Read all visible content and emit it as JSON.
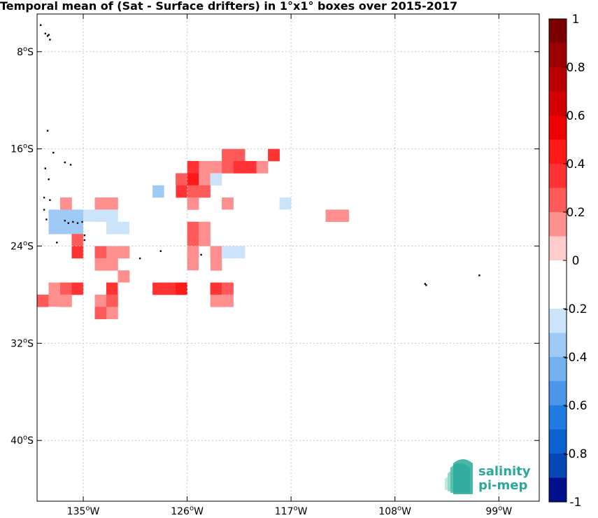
{
  "title": "Temporal mean of (Sat - Surface drifters) in 1°x1° boxes over 2015-2017",
  "map": {
    "lon_ticks": [
      "135°W",
      "126°W",
      "117°W",
      "108°W",
      "99°W"
    ],
    "lat_ticks": [
      "8°S",
      "16°S",
      "24°S",
      "32°S",
      "40°S"
    ],
    "lon_tick_values": [
      -135,
      -126,
      -117,
      -108,
      -99
    ],
    "lat_tick_values": [
      -8,
      -16,
      -24,
      -32,
      -40
    ],
    "lon_range": [
      -139.0,
      -95.5
    ],
    "lat_range": [
      -4.9,
      -45.0
    ],
    "grid": true
  },
  "colorbar": {
    "tick_labels": [
      "1",
      "0.8",
      "0.6",
      "0.4",
      "0.2",
      "0",
      "-0.2",
      "-0.4",
      "-0.6",
      "-0.8",
      "-1"
    ],
    "levels": 20,
    "colors_top_to_bottom": [
      "#7a0000",
      "#9c0000",
      "#b80000",
      "#d40000",
      "#ee0000",
      "#ff1a1a",
      "#ff3333",
      "#ff5a5a",
      "#ff8f8f",
      "#ffcccc",
      "#ffffff",
      "#ffffff",
      "#cce4fa",
      "#9fcaf5",
      "#73b0f0",
      "#4a96ea",
      "#1f7ce3",
      "#0a62d0",
      "#0548b5",
      "#00108a"
    ]
  },
  "logo": {
    "line1": "salinity",
    "line2": "pi-mep",
    "color": "#2aa89a"
  },
  "chart_data": {
    "type": "heatmap",
    "title": "Temporal mean of (Sat - Surface drifters) in 1°x1° boxes over 2015-2017",
    "x_unit": "longitude (°E, negative = W)",
    "y_unit": "latitude (°N, negative = S)",
    "value_range": [
      -1,
      1
    ],
    "cells": [
      {
        "lon": -110.5,
        "lat": -9.5,
        "v": -0.15
      },
      {
        "lon": -118.5,
        "lat": -15.5,
        "v": -0.15
      },
      {
        "lon": -118.5,
        "lat": -16.5,
        "v": 0.35
      },
      {
        "lon": -122.5,
        "lat": -16.5,
        "v": 0.25
      },
      {
        "lon": -121.5,
        "lat": -16.5,
        "v": 0.25
      },
      {
        "lon": -124.5,
        "lat": -17.5,
        "v": 0.15
      },
      {
        "lon": -123.5,
        "lat": -17.5,
        "v": 0.15
      },
      {
        "lon": -122.5,
        "lat": -17.5,
        "v": 0.25
      },
      {
        "lon": -121.5,
        "lat": -17.5,
        "v": 0.35
      },
      {
        "lon": -120.5,
        "lat": -17.5,
        "v": 0.35
      },
      {
        "lon": -119.5,
        "lat": -17.5,
        "v": 0.15
      },
      {
        "lon": -126.5,
        "lat": -17.5,
        "v": -0.15
      },
      {
        "lon": -125.5,
        "lat": -17.5,
        "v": 0.35
      },
      {
        "lon": -126.5,
        "lat": -18.5,
        "v": 0.25
      },
      {
        "lon": -125.5,
        "lat": -18.5,
        "v": 0.45
      },
      {
        "lon": -124.5,
        "lat": -18.5,
        "v": 0.15
      },
      {
        "lon": -123.5,
        "lat": -18.5,
        "v": -0.25
      },
      {
        "lon": -126.5,
        "lat": -19.5,
        "v": 0.35
      },
      {
        "lon": -125.5,
        "lat": -19.5,
        "v": 0.25
      },
      {
        "lon": -124.5,
        "lat": -19.5,
        "v": 0.25
      },
      {
        "lon": -122.5,
        "lat": -19.5,
        "v": -0.15
      },
      {
        "lon": -128.5,
        "lat": -19.5,
        "v": -0.35
      },
      {
        "lon": -127.5,
        "lat": -19.5,
        "v": -0.15
      },
      {
        "lon": -136.5,
        "lat": -20.5,
        "v": 0.15
      },
      {
        "lon": -133.5,
        "lat": -20.5,
        "v": 0.15
      },
      {
        "lon": -132.5,
        "lat": -20.5,
        "v": 0.15
      },
      {
        "lon": -129.5,
        "lat": -20.5,
        "v": -0.15
      },
      {
        "lon": -127.5,
        "lat": -20.5,
        "v": -0.15
      },
      {
        "lon": -125.5,
        "lat": -20.5,
        "v": 0.15
      },
      {
        "lon": -123.5,
        "lat": -20.5,
        "v": -0.15
      },
      {
        "lon": -122.5,
        "lat": -20.5,
        "v": 0.15
      },
      {
        "lon": -120.5,
        "lat": -20.5,
        "v": -0.15
      },
      {
        "lon": -117.5,
        "lat": -20.5,
        "v": -0.25
      },
      {
        "lon": -113.5,
        "lat": -21.5,
        "v": 0.15
      },
      {
        "lon": -112.5,
        "lat": -21.5,
        "v": 0.15
      },
      {
        "lon": -137.5,
        "lat": -21.5,
        "v": -0.35
      },
      {
        "lon": -136.5,
        "lat": -21.5,
        "v": -0.35
      },
      {
        "lon": -135.5,
        "lat": -21.5,
        "v": -0.35
      },
      {
        "lon": -134.5,
        "lat": -21.5,
        "v": -0.25
      },
      {
        "lon": -133.5,
        "lat": -21.5,
        "v": -0.25
      },
      {
        "lon": -132.5,
        "lat": -21.5,
        "v": -0.25
      },
      {
        "lon": -129.5,
        "lat": -21.5,
        "v": -0.15
      },
      {
        "lon": -122.5,
        "lat": -21.5,
        "v": -0.15
      },
      {
        "lon": -120.5,
        "lat": -21.5,
        "v": -0.15
      },
      {
        "lon": -117.5,
        "lat": -21.5,
        "v": -0.15
      },
      {
        "lon": -137.5,
        "lat": -22.5,
        "v": -0.35
      },
      {
        "lon": -136.5,
        "lat": -22.5,
        "v": -0.35
      },
      {
        "lon": -135.5,
        "lat": -22.5,
        "v": -0.35
      },
      {
        "lon": -134.5,
        "lat": -22.5,
        "v": -0.15
      },
      {
        "lon": -132.5,
        "lat": -22.5,
        "v": -0.25
      },
      {
        "lon": -131.5,
        "lat": -22.5,
        "v": -0.25
      },
      {
        "lon": -130.5,
        "lat": -22.5,
        "v": -0.15
      },
      {
        "lon": -127.5,
        "lat": -22.5,
        "v": -0.15
      },
      {
        "lon": -125.5,
        "lat": -22.5,
        "v": 0.25
      },
      {
        "lon": -124.5,
        "lat": -22.5,
        "v": 0.15
      },
      {
        "lon": -117.5,
        "lat": -22.5,
        "v": -0.15
      },
      {
        "lon": -135.5,
        "lat": -23.5,
        "v": 0.25
      },
      {
        "lon": -130.5,
        "lat": -23.5,
        "v": -0.15
      },
      {
        "lon": -125.5,
        "lat": -23.5,
        "v": 0.25
      },
      {
        "lon": -124.5,
        "lat": -23.5,
        "v": 0.15
      },
      {
        "lon": -135.5,
        "lat": -24.5,
        "v": 0.35
      },
      {
        "lon": -133.5,
        "lat": -24.5,
        "v": 0.25
      },
      {
        "lon": -132.5,
        "lat": -24.5,
        "v": 0.15
      },
      {
        "lon": -131.5,
        "lat": -24.5,
        "v": 0.15
      },
      {
        "lon": -127.5,
        "lat": -24.5,
        "v": -0.15
      },
      {
        "lon": -126.5,
        "lat": -24.5,
        "v": -0.15
      },
      {
        "lon": -125.5,
        "lat": -24.5,
        "v": 0.15
      },
      {
        "lon": -123.5,
        "lat": -24.5,
        "v": 0.15
      },
      {
        "lon": -122.5,
        "lat": -24.5,
        "v": -0.25
      },
      {
        "lon": -121.5,
        "lat": -24.5,
        "v": -0.25
      },
      {
        "lon": -133.5,
        "lat": -25.5,
        "v": 0.15
      },
      {
        "lon": -132.5,
        "lat": -25.5,
        "v": 0.15
      },
      {
        "lon": -130.5,
        "lat": -25.5,
        "v": -0.15
      },
      {
        "lon": -125.5,
        "lat": -25.5,
        "v": 0.15
      },
      {
        "lon": -123.5,
        "lat": -25.5,
        "v": 0.15
      },
      {
        "lon": -124.5,
        "lat": -25.5,
        "v": -0.15
      },
      {
        "lon": -131.5,
        "lat": -26.5,
        "v": 0.15
      },
      {
        "lon": -126.5,
        "lat": -26.5,
        "v": -0.15
      },
      {
        "lon": -125.5,
        "lat": -26.5,
        "v": -0.15
      },
      {
        "lon": -137.5,
        "lat": -27.5,
        "v": 0.15
      },
      {
        "lon": -136.5,
        "lat": -27.5,
        "v": 0.25
      },
      {
        "lon": -135.5,
        "lat": -27.5,
        "v": 0.35
      },
      {
        "lon": -132.5,
        "lat": -27.5,
        "v": 0.35
      },
      {
        "lon": -131.5,
        "lat": -27.5,
        "v": -0.15
      },
      {
        "lon": -128.5,
        "lat": -27.5,
        "v": 0.35
      },
      {
        "lon": -127.5,
        "lat": -27.5,
        "v": 0.35
      },
      {
        "lon": -126.5,
        "lat": -27.5,
        "v": 0.45
      },
      {
        "lon": -124.5,
        "lat": -27.5,
        "v": -0.15
      },
      {
        "lon": -123.5,
        "lat": -27.5,
        "v": 0.35
      },
      {
        "lon": -122.5,
        "lat": -27.5,
        "v": 0.25
      },
      {
        "lon": -138.5,
        "lat": -28.5,
        "v": 0.25
      },
      {
        "lon": -137.5,
        "lat": -28.5,
        "v": 0.15
      },
      {
        "lon": -136.5,
        "lat": -28.5,
        "v": 0.15
      },
      {
        "lon": -133.5,
        "lat": -28.5,
        "v": 0.15
      },
      {
        "lon": -132.5,
        "lat": -28.5,
        "v": 0.25
      },
      {
        "lon": -123.5,
        "lat": -28.5,
        "v": 0.15
      },
      {
        "lon": -122.5,
        "lat": -28.5,
        "v": 0.15
      },
      {
        "lon": -137.5,
        "lat": -29.5,
        "v": -0.15
      },
      {
        "lon": -133.5,
        "lat": -29.5,
        "v": 0.25
      },
      {
        "lon": -132.5,
        "lat": -29.5,
        "v": 0.15
      },
      {
        "lon": -124.5,
        "lat": -29.5,
        "v": -0.15
      }
    ],
    "land": [
      {
        "lon": -138.7,
        "lat": -5.8
      },
      {
        "lon": -138.3,
        "lat": -6.5
      },
      {
        "lon": -138.1,
        "lat": -6.7
      },
      {
        "lon": -138.0,
        "lat": -6.6
      },
      {
        "lon": -137.9,
        "lat": -7.0
      },
      {
        "lon": -138.1,
        "lat": -14.5
      },
      {
        "lon": -137.6,
        "lat": -16.3
      },
      {
        "lon": -136.6,
        "lat": -17.1
      },
      {
        "lon": -136.1,
        "lat": -17.3
      },
      {
        "lon": -138.3,
        "lat": -17.6
      },
      {
        "lon": -138.0,
        "lat": -18.5
      },
      {
        "lon": -138.4,
        "lat": -20.0
      },
      {
        "lon": -137.9,
        "lat": -20.2
      },
      {
        "lon": -138.4,
        "lat": -21.0
      },
      {
        "lon": -138.2,
        "lat": -21.8
      },
      {
        "lon": -136.6,
        "lat": -21.9
      },
      {
        "lon": -136.3,
        "lat": -22.1
      },
      {
        "lon": -135.9,
        "lat": -22.0
      },
      {
        "lon": -135.5,
        "lat": -22.1
      },
      {
        "lon": -135.1,
        "lat": -22.0
      },
      {
        "lon": -134.9,
        "lat": -23.1
      },
      {
        "lon": -137.3,
        "lat": -23.7
      },
      {
        "lon": -134.9,
        "lat": -23.5
      },
      {
        "lon": -130.1,
        "lat": -25.0
      },
      {
        "lon": -128.3,
        "lat": -24.4
      },
      {
        "lon": -124.8,
        "lat": -24.7
      },
      {
        "lon": -105.4,
        "lat": -27.1
      },
      {
        "lon": -105.3,
        "lat": -27.2
      },
      {
        "lon": -100.7,
        "lat": -26.4
      }
    ]
  }
}
